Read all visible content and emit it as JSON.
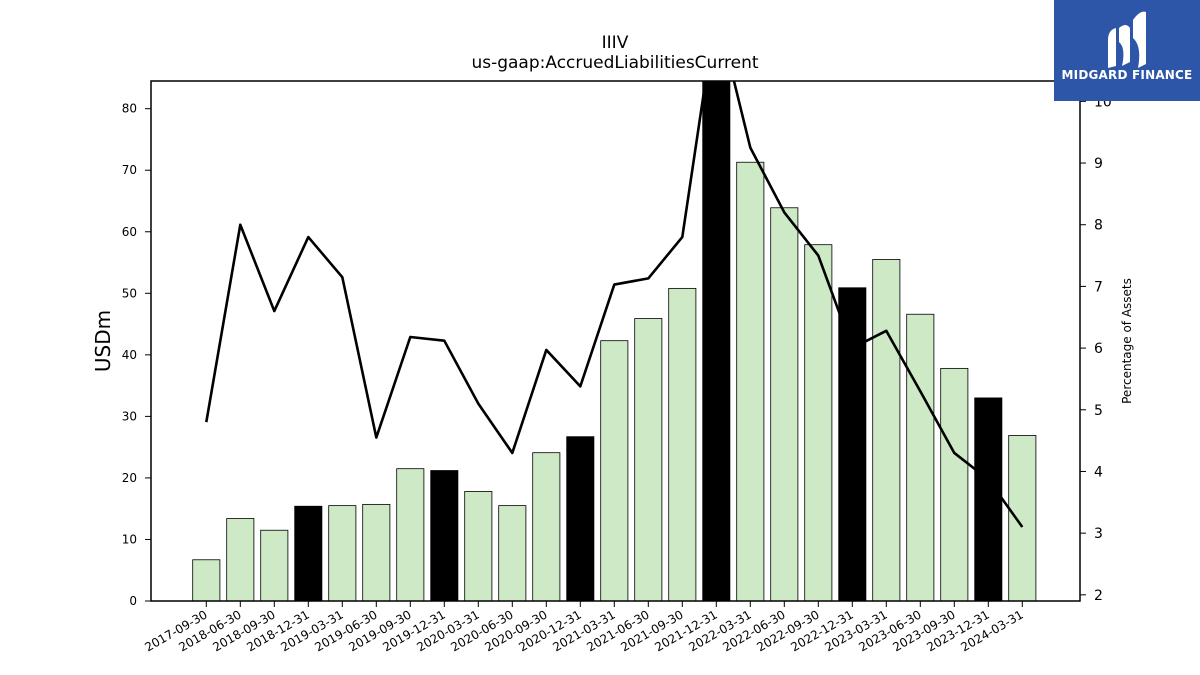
{
  "logo": {
    "text": "MIDGARD FINANCE",
    "icon": "midgard-logo-icon",
    "color": "#2d56a8"
  },
  "chart_data": {
    "type": "bar",
    "title": "IIIV",
    "subtitle": "us-gaap:AccruedLiabilitiesCurrent",
    "ylabel": "USDm",
    "ylabel_right": "Percentage of Assets",
    "ylim": [
      0,
      84.5
    ],
    "yticks": [
      0,
      10,
      20,
      30,
      40,
      50,
      60,
      70,
      80
    ],
    "ylim_right": [
      1.9,
      10.33
    ],
    "yticks_right": [
      2,
      3,
      4,
      5,
      6,
      7,
      8,
      9,
      10
    ],
    "grid": false,
    "categories": [
      "2017-09-30",
      "2018-06-30",
      "2018-09-30",
      "2018-12-31",
      "2019-03-31",
      "2019-06-30",
      "2019-09-30",
      "2019-12-31",
      "2020-03-31",
      "2020-06-30",
      "2020-09-30",
      "2020-12-31",
      "2021-03-31",
      "2021-06-30",
      "2021-09-30",
      "2021-12-31",
      "2022-03-31",
      "2022-06-30",
      "2022-09-30",
      "2022-12-31",
      "2023-03-31",
      "2023-06-30",
      "2023-09-30",
      "2023-12-31",
      "2024-03-31"
    ],
    "series": [
      {
        "type": "bar",
        "values": [
          6.7,
          13.4,
          11.5,
          15.4,
          15.5,
          15.7,
          21.5,
          21.2,
          17.8,
          15.5,
          24.1,
          26.7,
          42.3,
          45.9,
          50.8,
          87.0,
          71.3,
          63.9,
          57.9,
          50.9,
          55.5,
          46.6,
          37.8,
          33.0,
          26.9
        ],
        "highlight": [
          false,
          false,
          false,
          true,
          false,
          false,
          false,
          true,
          false,
          false,
          false,
          true,
          false,
          false,
          false,
          true,
          false,
          false,
          false,
          true,
          false,
          false,
          false,
          true,
          false
        ],
        "color": "#cde9c6",
        "highlight_color": "#000000"
      },
      {
        "type": "line",
        "axis": "right",
        "values": [
          4.8,
          8.0,
          6.6,
          7.8,
          7.15,
          4.55,
          6.18,
          6.12,
          5.1,
          4.3,
          5.97,
          5.38,
          7.03,
          7.13,
          7.8,
          11.5,
          9.25,
          8.2,
          7.5,
          6.0,
          6.28,
          5.3,
          4.3,
          3.87,
          3.1
        ],
        "color": "#000000"
      }
    ]
  }
}
